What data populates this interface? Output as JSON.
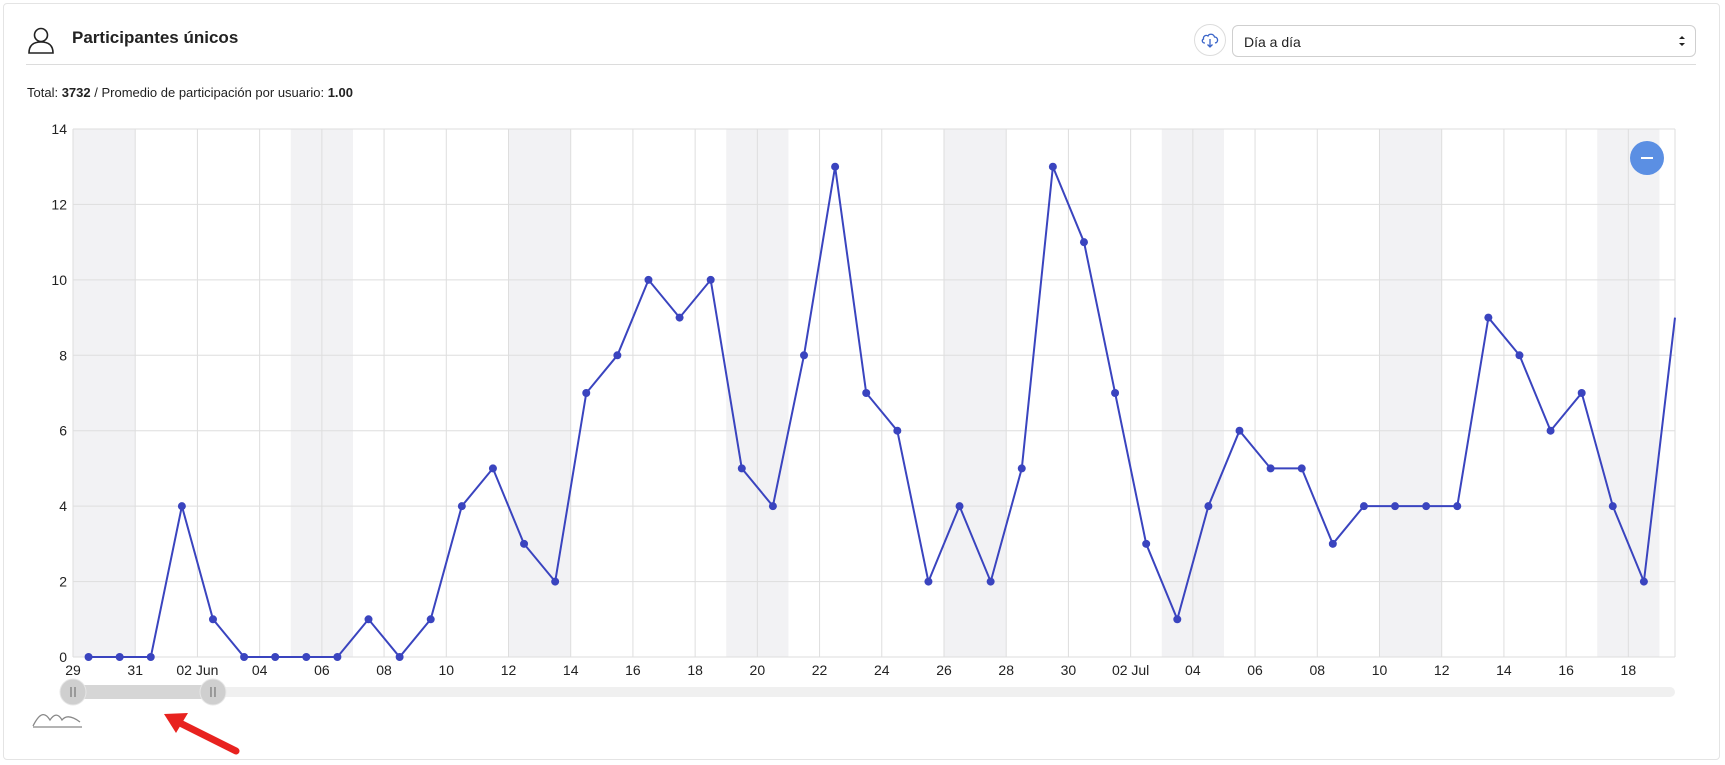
{
  "header": {
    "title": "Participantes únicos",
    "period_select": {
      "value": "Día a día"
    }
  },
  "summary": {
    "total_label": "Total:",
    "total_value": "3732",
    "separator": "/",
    "avg_label": "Promedio de participación por usuario:",
    "avg_value": "1.00"
  },
  "colors": {
    "line": "#3a44bf",
    "weekend_band": "#f2f2f4",
    "grid": "#dedede",
    "zoom_button": "#5b8fe3",
    "annotation_arrow": "#e8221f"
  },
  "icons": {
    "user": "user-icon",
    "download": "cloud-download-icon",
    "zoom_out": "minus-icon",
    "navigator": "mini-chart-icon"
  },
  "chart_data": {
    "type": "line",
    "title": "",
    "xlabel": "",
    "ylabel": "",
    "ylim": [
      0,
      14
    ],
    "yticks": [
      0,
      2,
      4,
      6,
      8,
      10,
      12,
      14
    ],
    "xlim": [
      "2021-05-29",
      "2021-07-19"
    ],
    "xtick_labels": [
      "29",
      "31",
      "02 Jun",
      "04",
      "06",
      "08",
      "10",
      "12",
      "14",
      "16",
      "18",
      "20",
      "22",
      "24",
      "26",
      "28",
      "30",
      "02 Jul",
      "04",
      "06",
      "08",
      "10",
      "12",
      "14",
      "16",
      "18"
    ],
    "grid": true,
    "weekend_bands": [
      [
        "2021-05-29",
        "2021-05-31"
      ],
      [
        "2021-06-05",
        "2021-06-07"
      ],
      [
        "2021-06-12",
        "2021-06-14"
      ],
      [
        "2021-06-19",
        "2021-06-21"
      ],
      [
        "2021-06-26",
        "2021-06-28"
      ],
      [
        "2021-07-03",
        "2021-07-05"
      ],
      [
        "2021-07-10",
        "2021-07-12"
      ],
      [
        "2021-07-17",
        "2021-07-19"
      ]
    ],
    "series": [
      {
        "x": [
          "2021-05-29",
          "2021-05-30",
          "2021-05-31",
          "2021-06-01",
          "2021-06-02",
          "2021-06-03",
          "2021-06-04",
          "2021-06-05",
          "2021-06-06",
          "2021-06-07",
          "2021-06-08",
          "2021-06-09",
          "2021-06-10",
          "2021-06-11",
          "2021-06-12",
          "2021-06-13",
          "2021-06-14",
          "2021-06-15",
          "2021-06-16",
          "2021-06-17",
          "2021-06-18",
          "2021-06-19",
          "2021-06-20",
          "2021-06-21",
          "2021-06-22",
          "2021-06-23",
          "2021-06-24",
          "2021-06-25",
          "2021-06-26",
          "2021-06-27",
          "2021-06-28",
          "2021-06-29",
          "2021-06-30",
          "2021-07-01",
          "2021-07-02",
          "2021-07-03",
          "2021-07-04",
          "2021-07-05",
          "2021-07-06",
          "2021-07-07",
          "2021-07-08",
          "2021-07-09",
          "2021-07-10",
          "2021-07-11",
          "2021-07-12",
          "2021-07-13",
          "2021-07-14",
          "2021-07-15",
          "2021-07-16",
          "2021-07-17",
          "2021-07-18",
          "2021-07-19"
        ],
        "values": [
          0,
          0,
          0,
          4,
          1,
          0,
          0,
          0,
          0,
          1,
          0,
          1,
          4,
          5,
          3,
          2,
          7,
          8,
          10,
          9,
          10,
          5,
          4,
          8,
          13,
          7,
          6,
          2,
          4,
          2,
          5,
          13,
          11,
          7,
          3,
          1,
          4,
          6,
          5,
          5,
          3,
          4,
          4,
          4,
          4,
          9,
          8,
          6,
          7,
          4,
          2,
          9
        ]
      }
    ],
    "navigator": {
      "selected_range": [
        "2021-05-29",
        "2021-06-02"
      ]
    }
  }
}
